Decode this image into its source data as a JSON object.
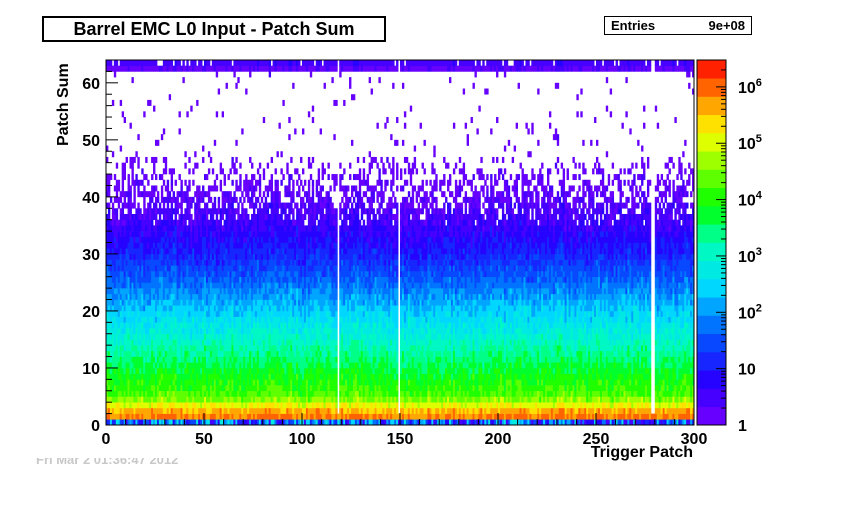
{
  "chart_data": {
    "type": "heatmap",
    "title": "Barrel EMC L0 Input - Patch Sum",
    "xlabel": "Trigger Patch",
    "ylabel": "Patch Sum",
    "xlim": [
      0,
      300
    ],
    "ylim": [
      0,
      64
    ],
    "x_ticks": [
      "0",
      "50",
      "100",
      "150",
      "200",
      "250",
      "300"
    ],
    "y_ticks": [
      "0",
      "10",
      "20",
      "30",
      "40",
      "50",
      "60"
    ],
    "colorbar": {
      "scale": "log",
      "range": [
        1,
        3000000
      ],
      "tick_labels": [
        {
          "base": "1",
          "exp": ""
        },
        {
          "base": "10",
          "exp": ""
        },
        {
          "base": "10",
          "exp": "2"
        },
        {
          "base": "10",
          "exp": "3"
        },
        {
          "base": "10",
          "exp": "4"
        },
        {
          "base": "10",
          "exp": "5"
        },
        {
          "base": "10",
          "exp": "6"
        }
      ]
    },
    "stats": {
      "label": "Entries",
      "value": "9e+08"
    },
    "approx_profile": {
      "description_units": "counts per bin vs patch sum (log10)",
      "patch_sum": [
        0,
        1,
        2,
        5,
        10,
        15,
        20,
        25,
        30,
        35,
        40,
        45,
        50,
        55,
        60,
        62,
        63
      ],
      "log10_counts": [
        1.2,
        5.8,
        5.9,
        4.3,
        3.7,
        3.0,
        2.4,
        1.7,
        1.1,
        0.6,
        0.25,
        0.05,
        0.0,
        0.0,
        0.0,
        0.0,
        0.5
      ]
    },
    "empty_columns": [
      118,
      149,
      278,
      279
    ]
  },
  "faint_text": "Fri Mar 2 01:36:47 2012"
}
